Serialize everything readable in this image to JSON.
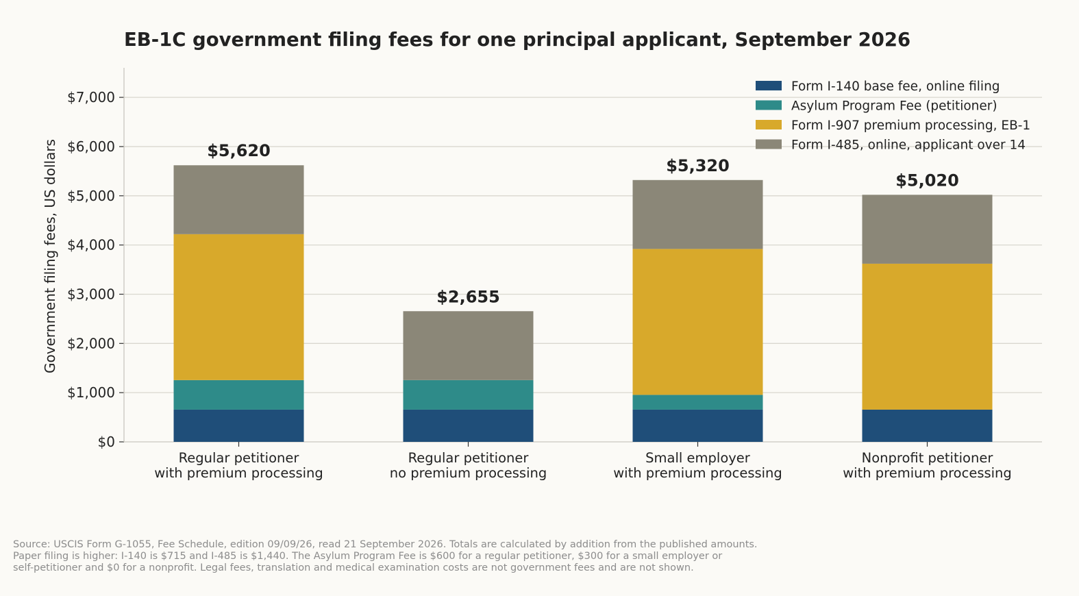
{
  "chart_data": {
    "type": "bar",
    "stacked": true,
    "title": "EB-1C government filing fees for one principal applicant, September 2026",
    "ylabel": "Government filing fees, US dollars",
    "xlabel": "",
    "ylim": [
      0,
      7600
    ],
    "yticks": [
      0,
      1000,
      2000,
      3000,
      4000,
      5000,
      6000,
      7000
    ],
    "ytick_labels": [
      "$0",
      "$1,000",
      "$2,000",
      "$3,000",
      "$4,000",
      "$5,000",
      "$6,000",
      "$7,000"
    ],
    "grid": "horizontal",
    "legend_position": "top-right",
    "categories": [
      [
        "Regular petitioner",
        "with premium processing"
      ],
      [
        "Regular petitioner",
        "no premium processing"
      ],
      [
        "Small employer",
        "with premium processing"
      ],
      [
        "Nonprofit petitioner",
        "with premium processing"
      ]
    ],
    "series": [
      {
        "name": "Form I-140 base fee, online filing",
        "color": "#1f4e79",
        "values": [
          655,
          655,
          655,
          655
        ]
      },
      {
        "name": "Asylum Program Fee (petitioner)",
        "color": "#2e8b89",
        "values": [
          600,
          600,
          300,
          0
        ]
      },
      {
        "name": "Form I-907 premium processing, EB-1",
        "color": "#d8a92b",
        "values": [
          2965,
          0,
          2965,
          2965
        ]
      },
      {
        "name": "Form I-485, online, applicant over 14",
        "color": "#8b8778",
        "values": [
          1400,
          1400,
          1400,
          1400
        ]
      }
    ],
    "totals": [
      5620,
      2655,
      5320,
      5020
    ],
    "total_labels": [
      "$5,620",
      "$2,655",
      "$5,320",
      "$5,020"
    ]
  },
  "footnote": [
    "Source: USCIS Form G-1055, Fee Schedule, edition 09/09/26, read 21 September 2026. Totals are calculated by addition from the published amounts.",
    "Paper filing is higher: I-140 is $715 and I-485 is $1,440. The Asylum Program Fee is $600 for a regular petitioner, $300 for a small employer or",
    "self-petitioner and $0 for a nonprofit. Legal fees, translation and medical examination costs are not government fees and are not shown."
  ],
  "colors": {
    "background": "#fbfaf6",
    "grid": "#d9d7cf",
    "axis": "#c9c7bf",
    "text": "#222222",
    "footnote": "#8c8c8c"
  }
}
